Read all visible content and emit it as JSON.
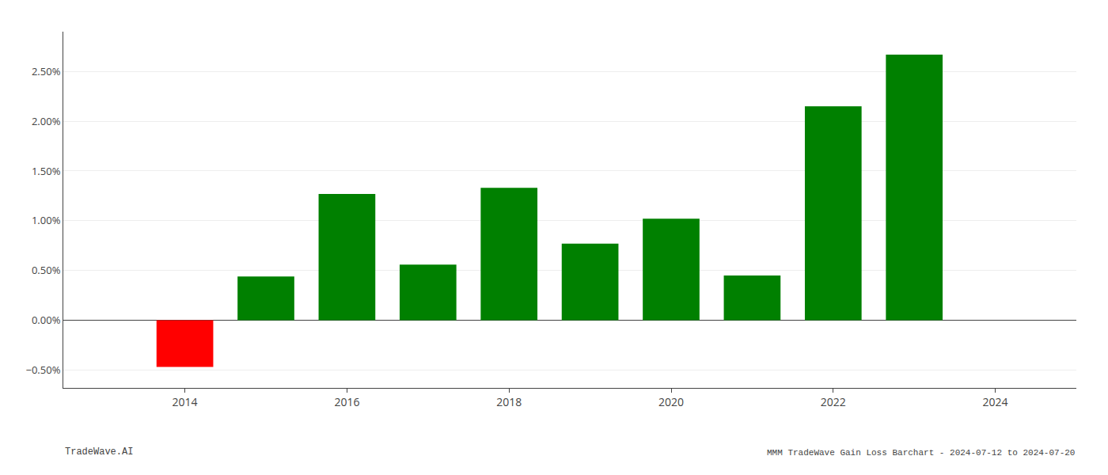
{
  "chart_data": {
    "type": "bar",
    "title": "MMM TradeWave Gain Loss Barchart - 2024-07-12 to 2024-07-20",
    "annotations": [
      "TradeWave.AI"
    ],
    "x": [
      2014,
      2015,
      2016,
      2017,
      2018,
      2019,
      2020,
      2021,
      2022,
      2023
    ],
    "values": [
      -0.47,
      0.44,
      1.27,
      0.56,
      1.33,
      0.77,
      1.02,
      0.45,
      2.15,
      2.67
    ],
    "colors": [
      "#ff0000",
      "#008000",
      "#008000",
      "#008000",
      "#008000",
      "#008000",
      "#008000",
      "#008000",
      "#008000",
      "#008000"
    ],
    "xlim": [
      2012.5,
      2025.0
    ],
    "xticks": [
      2014,
      2016,
      2018,
      2020,
      2022,
      2024
    ],
    "ylim": [
      -0.68,
      2.9
    ],
    "yticks": [
      {
        "value": -0.5,
        "label": "−0.50%"
      },
      {
        "value": 0.0,
        "label": "0.00%"
      },
      {
        "value": 0.5,
        "label": "0.50%"
      },
      {
        "value": 1.0,
        "label": "1.00%"
      },
      {
        "value": 1.5,
        "label": "1.50%"
      },
      {
        "value": 2.0,
        "label": "2.00%"
      },
      {
        "value": 2.5,
        "label": "2.50%"
      }
    ],
    "grid": true
  }
}
